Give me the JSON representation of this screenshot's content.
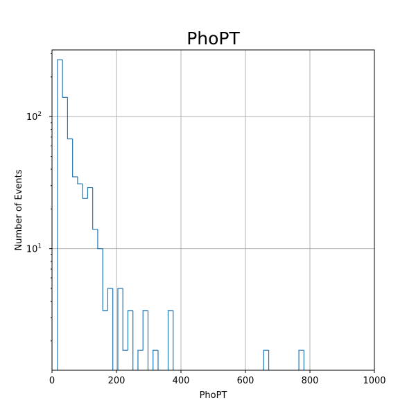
{
  "chart_data": {
    "type": "histogram",
    "title": "PhoPT",
    "xlabel": "PhoPT",
    "ylabel": "Number of Events",
    "xlim": [
      0,
      1000
    ],
    "ylim": [
      1.2,
      320
    ],
    "yscale": "log",
    "grid": true,
    "color": "#1f77b4",
    "bin_width": 15.6,
    "bin_start": 17,
    "counts": [
      270,
      140,
      68,
      35,
      31,
      24,
      29,
      14,
      10,
      3.4,
      5,
      0,
      5,
      1.7,
      3.4,
      0,
      1.7,
      3.4,
      0,
      1.7,
      0,
      0,
      3.4,
      0,
      0,
      0,
      0,
      0,
      0,
      0,
      0,
      0,
      0,
      0,
      0,
      0,
      0,
      0,
      0,
      0,
      0,
      1.7,
      0,
      0,
      0,
      0,
      0,
      0,
      1.7
    ],
    "x_ticks": [
      {
        "value": 0,
        "label": "0"
      },
      {
        "value": 200,
        "label": "200"
      },
      {
        "value": 400,
        "label": "400"
      },
      {
        "value": 600,
        "label": "600"
      },
      {
        "value": 800,
        "label": "800"
      },
      {
        "value": 1000,
        "label": "1000"
      }
    ],
    "y_ticks": [
      {
        "value": 10,
        "base": "10",
        "exp": "1"
      },
      {
        "value": 100,
        "base": "10",
        "exp": "2"
      }
    ],
    "y_minor_ticks": [
      2,
      3,
      4,
      5,
      6,
      7,
      8,
      9,
      20,
      30,
      40,
      50,
      60,
      70,
      80,
      90,
      200,
      300
    ]
  }
}
